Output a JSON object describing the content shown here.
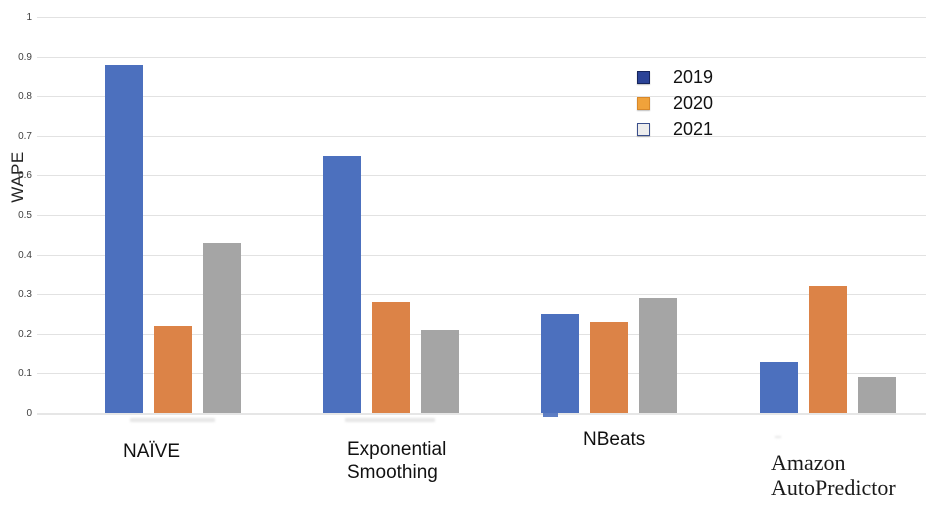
{
  "chart_data": {
    "type": "bar",
    "title": "",
    "xlabel": "",
    "ylabel": "WAPE",
    "ylim": [
      0,
      1
    ],
    "ytick_step": 0.1,
    "grid": true,
    "legend_position": "upper-right",
    "yticks": [
      "1",
      "0.9",
      "0.8",
      "0.7",
      "0.6",
      "0.5",
      "0.4",
      "0.3",
      "0.2",
      "0.1",
      "0"
    ],
    "categories": [
      "NAÏVE",
      "Exponential Smoothing",
      "NBeats",
      "Amazon AutoPredictor"
    ],
    "series": [
      {
        "name": "2019",
        "color": "#4C70BE",
        "swatch_fill": "#2B4397",
        "swatch_border": "#16255C",
        "values": [
          0.88,
          0.65,
          0.25,
          0.13
        ]
      },
      {
        "name": "2020",
        "color": "#DC8347",
        "swatch_fill": "#F0A23B",
        "swatch_border": "#D8882A",
        "values": [
          0.22,
          0.28,
          0.23,
          0.32
        ]
      },
      {
        "name": "2021",
        "color": "#A5A5A5",
        "swatch_fill": "#EDEDED",
        "swatch_border": "#3A4F8C",
        "values": [
          0.43,
          0.21,
          0.29,
          0.09
        ]
      }
    ]
  }
}
